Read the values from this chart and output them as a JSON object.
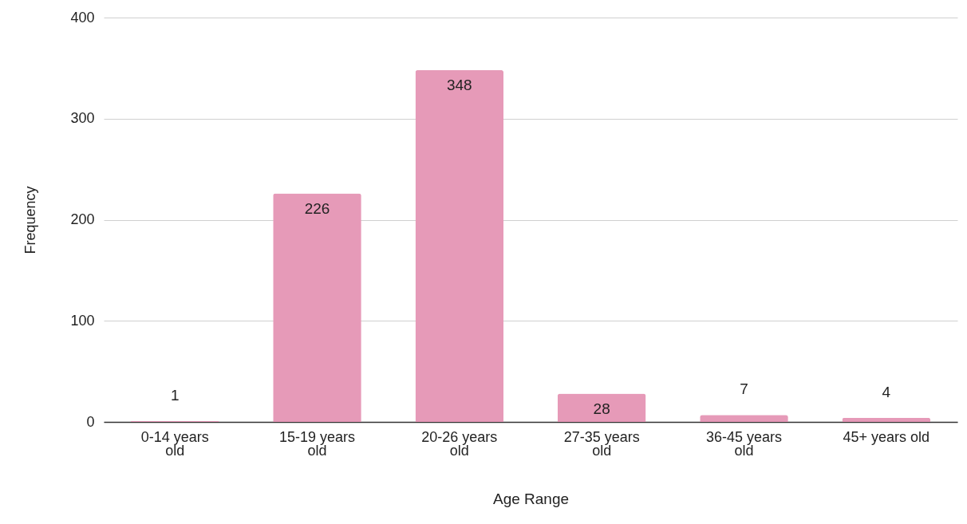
{
  "chart_data": {
    "type": "bar",
    "xlabel": "Age Range",
    "ylabel": "Frequency",
    "categories": [
      "0-14 years old",
      "15-19 years old",
      "20-26 years old",
      "27-35 years old",
      "36-45 years old",
      "45+ years old"
    ],
    "values": [
      1,
      226,
      348,
      28,
      7,
      4
    ],
    "color": "#e69ab8",
    "ylim": [
      0,
      400
    ],
    "yticks": [
      0,
      100,
      200,
      300,
      400
    ],
    "grid": "y",
    "data_labels": true
  }
}
